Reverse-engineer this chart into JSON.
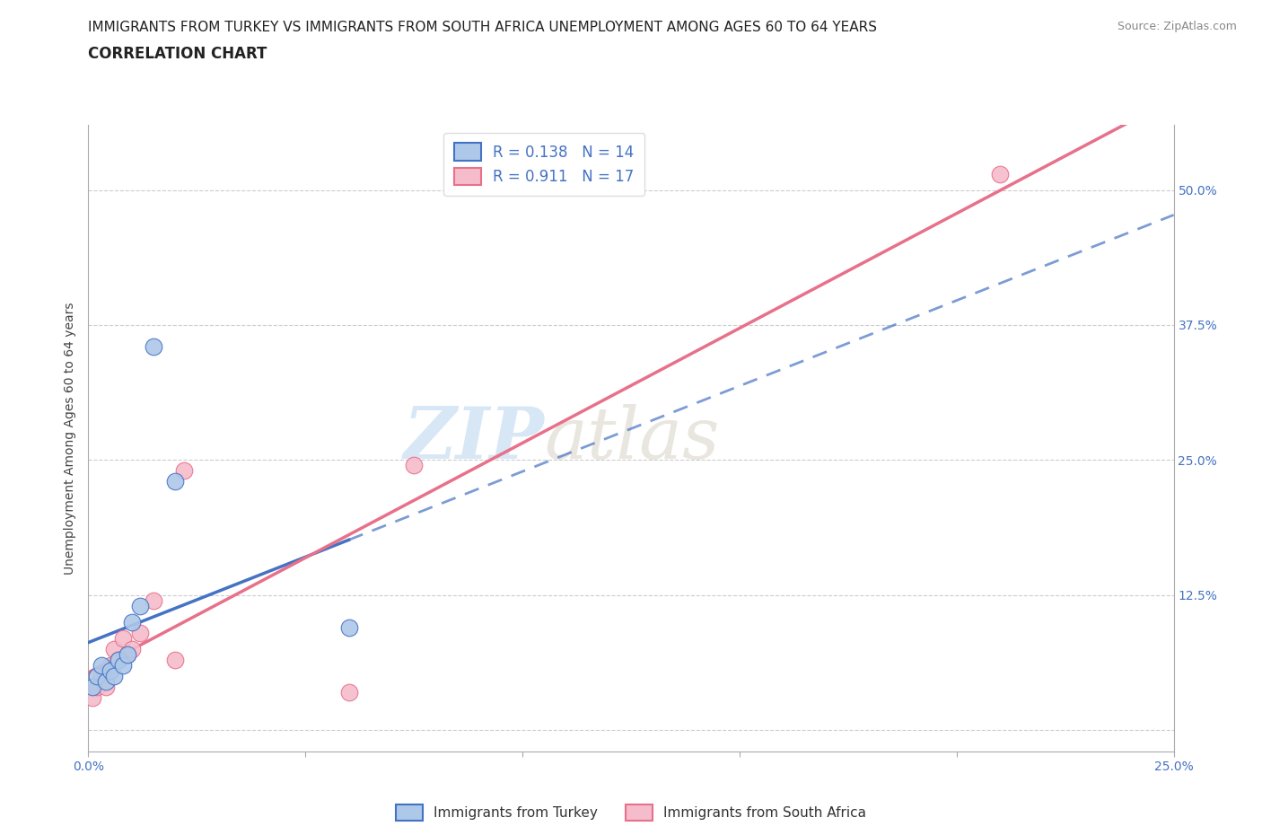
{
  "title_line1": "IMMIGRANTS FROM TURKEY VS IMMIGRANTS FROM SOUTH AFRICA UNEMPLOYMENT AMONG AGES 60 TO 64 YEARS",
  "title_line2": "CORRELATION CHART",
  "source": "Source: ZipAtlas.com",
  "ylabel": "Unemployment Among Ages 60 to 64 years",
  "xlim": [
    0.0,
    0.25
  ],
  "ylim": [
    -0.02,
    0.56
  ],
  "turkey_x": [
    0.001,
    0.002,
    0.003,
    0.004,
    0.005,
    0.006,
    0.007,
    0.008,
    0.009,
    0.01,
    0.012,
    0.015,
    0.02,
    0.06
  ],
  "turkey_y": [
    0.04,
    0.05,
    0.06,
    0.045,
    0.055,
    0.05,
    0.065,
    0.06,
    0.07,
    0.1,
    0.115,
    0.355,
    0.23,
    0.095
  ],
  "sa_x": [
    0.001,
    0.002,
    0.003,
    0.004,
    0.005,
    0.006,
    0.007,
    0.008,
    0.009,
    0.01,
    0.012,
    0.015,
    0.02,
    0.022,
    0.06,
    0.075,
    0.21
  ],
  "sa_y": [
    0.03,
    0.04,
    0.05,
    0.04,
    0.06,
    0.075,
    0.065,
    0.085,
    0.07,
    0.075,
    0.09,
    0.12,
    0.065,
    0.24,
    0.035,
    0.245,
    0.515
  ],
  "turkey_color": "#adc8e8",
  "sa_color": "#f5bccb",
  "turkey_line_color": "#4472c4",
  "sa_line_color": "#e8708a",
  "turkey_R": 0.138,
  "turkey_N": 14,
  "sa_R": 0.911,
  "sa_N": 17,
  "watermark_zip": "ZIP",
  "watermark_atlas": "atlas",
  "background_color": "#ffffff",
  "grid_color": "#cccccc",
  "title_fontsize": 11,
  "axis_label_fontsize": 10,
  "tick_fontsize": 10,
  "legend_fontsize": 12
}
